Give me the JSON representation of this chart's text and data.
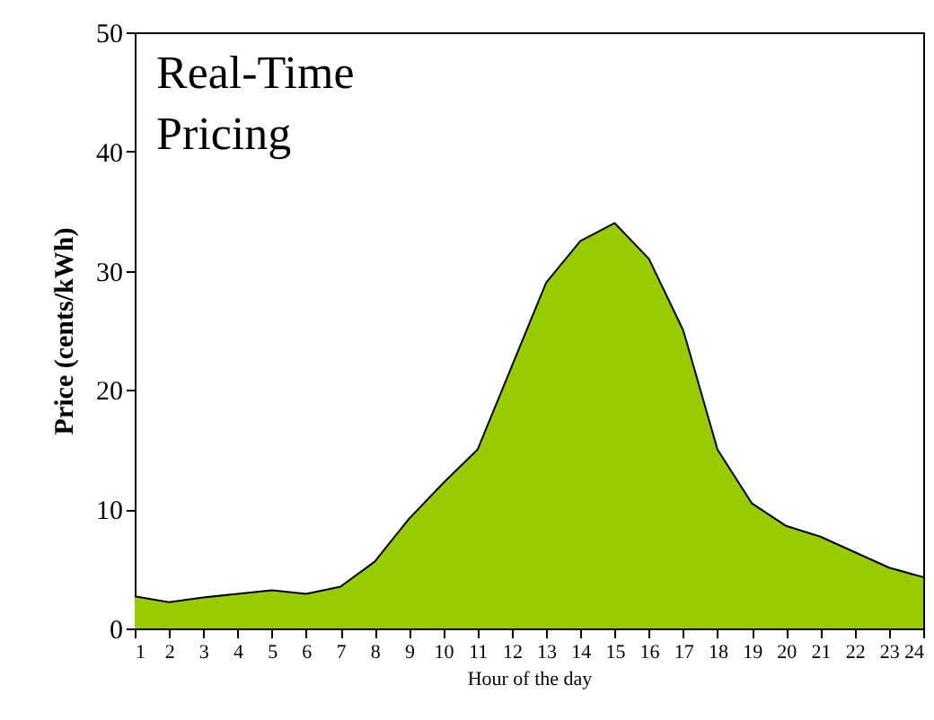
{
  "chart_data": {
    "type": "area",
    "title": "Real-Time Pricing",
    "xlabel": "Hour of the day",
    "ylabel": "Price (cents/kWh)",
    "x": [
      1,
      2,
      3,
      4,
      5,
      6,
      7,
      8,
      9,
      10,
      11,
      12,
      13,
      14,
      15,
      16,
      17,
      18,
      19,
      20,
      21,
      22,
      23,
      24
    ],
    "series": [
      {
        "color": "#99cc00",
        "values": [
          2.7,
          2.2,
          2.6,
          2.9,
          3.2,
          2.9,
          3.5,
          5.6,
          9.2,
          12.2,
          15,
          22,
          29,
          32.5,
          34,
          31,
          25,
          15,
          10.5,
          8.6,
          7.7,
          6.4,
          5.1,
          4.3
        ]
      }
    ],
    "xlim": [
      1,
      24
    ],
    "xticks": [
      1,
      2,
      3,
      4,
      5,
      6,
      7,
      8,
      9,
      10,
      11,
      12,
      13,
      14,
      15,
      16,
      17,
      18,
      19,
      20,
      21,
      22,
      23,
      24
    ],
    "ylim": [
      0,
      50
    ],
    "yticks": [
      0,
      10,
      20,
      30,
      40,
      50
    ],
    "grid": false
  }
}
